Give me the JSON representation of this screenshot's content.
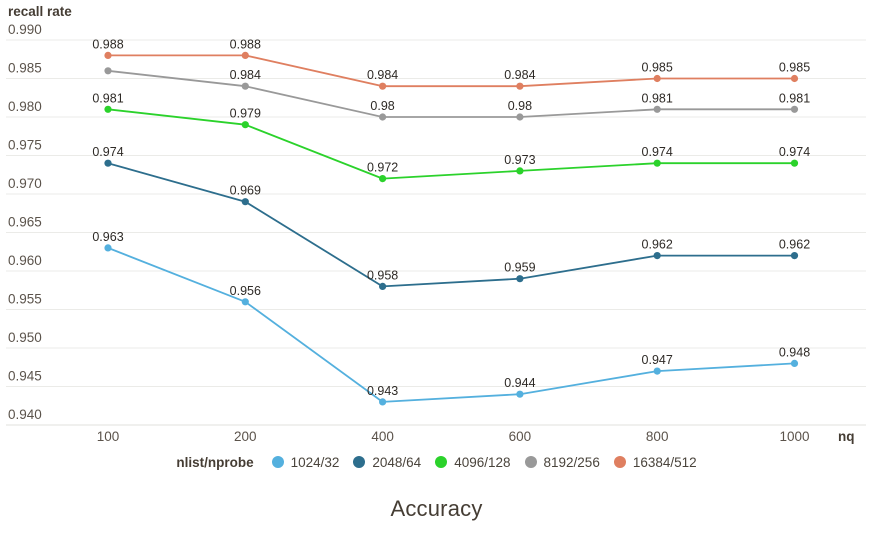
{
  "chart": {
    "y_axis_title": "recall rate",
    "x_axis_title": "nq",
    "title": "Accuracy"
  },
  "legend": {
    "title": "nlist/nprobe"
  },
  "chart_data": {
    "type": "line",
    "title": "Accuracy",
    "xlabel": "nq",
    "ylabel": "recall rate",
    "categories": [
      "100",
      "200",
      "400",
      "600",
      "800",
      "1000"
    ],
    "ylim": [
      0.94,
      0.99
    ],
    "y_tick_step": 0.005,
    "y_tick_labels": [
      "0.990",
      "0.985",
      "0.980",
      "0.975",
      "0.970",
      "0.965",
      "0.960",
      "0.955",
      "0.950",
      "0.945",
      "0.940"
    ],
    "grid": true,
    "legend_position": "bottom",
    "colors": {
      "grid": "#ebebe8",
      "tick_text": "#5b534b",
      "data_label": "#2e2a26"
    },
    "series": [
      {
        "name": "1024/32",
        "color": "#54b0de",
        "values": [
          0.963,
          0.956,
          0.943,
          0.944,
          0.947,
          0.948
        ],
        "labels": [
          "0.963",
          "0.956",
          "0.943",
          "0.944",
          "0.947",
          "0.948"
        ]
      },
      {
        "name": "2048/64",
        "color": "#2d6e8d",
        "values": [
          0.974,
          0.969,
          0.958,
          0.959,
          0.962,
          0.962
        ],
        "labels": [
          "0.974",
          "0.969",
          "0.958",
          "0.959",
          "0.962",
          "0.962"
        ]
      },
      {
        "name": "4096/128",
        "color": "#2bd22b",
        "values": [
          0.981,
          0.979,
          0.972,
          0.973,
          0.974,
          0.974
        ],
        "labels": [
          "0.981",
          "0.979",
          "0.972",
          "0.973",
          "0.974",
          "0.974"
        ]
      },
      {
        "name": "8192/256",
        "color": "#999999",
        "values": [
          0.986,
          0.984,
          0.98,
          0.98,
          0.981,
          0.981
        ],
        "labels": [
          "",
          "0.984",
          "0.98",
          "0.98",
          "0.981",
          "0.981"
        ]
      },
      {
        "name": "16384/512",
        "color": "#df7f60",
        "values": [
          0.988,
          0.988,
          0.984,
          0.984,
          0.985,
          0.985
        ],
        "labels": [
          "0.988",
          "0.988",
          "0.984",
          "0.984",
          "0.985",
          "0.985"
        ]
      }
    ]
  }
}
